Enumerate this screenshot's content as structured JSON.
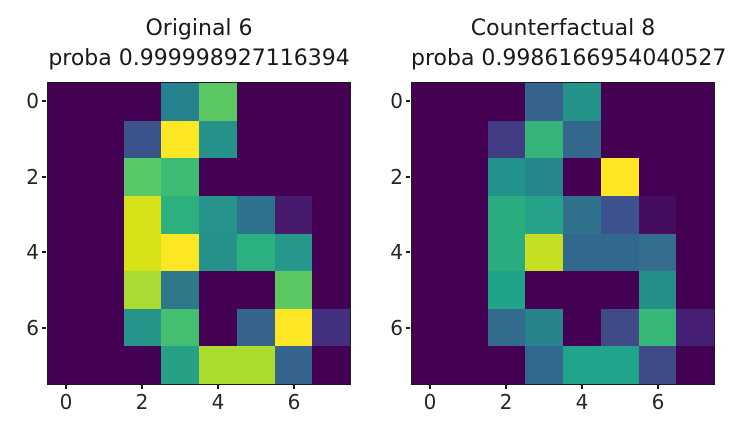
{
  "figure": {
    "background": "#ffffff",
    "text_color": "#1a1a1a",
    "tick_color": "#262626",
    "spine_color": "#1c1c1c"
  },
  "chart_data": [
    {
      "type": "heatmap",
      "panel": "left",
      "title_line1": "Original 6",
      "title_line2": "proba 0.999998927116394",
      "predicted_class": "6",
      "probability": "0.999998927116394",
      "colormap": "viridis",
      "value_range": [
        0,
        16
      ],
      "grid_size": 8,
      "xticks": [
        "0",
        "2",
        "4",
        "6"
      ],
      "yticks": [
        "0",
        "2",
        "4",
        "6"
      ],
      "values_est": [
        [
          0,
          0,
          0,
          7,
          12,
          0,
          0,
          0
        ],
        [
          0,
          0,
          4,
          16,
          8,
          0,
          0,
          0
        ],
        [
          0,
          0,
          12,
          11,
          0,
          0,
          0,
          0
        ],
        [
          0,
          0,
          15,
          10,
          8,
          6,
          1,
          0
        ],
        [
          0,
          0,
          15,
          16,
          8,
          10,
          9,
          0
        ],
        [
          0,
          0,
          14,
          6,
          0,
          0,
          12,
          0
        ],
        [
          0,
          0,
          8,
          11,
          0,
          5,
          16,
          2
        ],
        [
          0,
          0,
          0,
          9,
          14,
          14,
          5,
          0
        ]
      ],
      "cell_colors": [
        [
          "#440154",
          "#440154",
          "#440154",
          "#26828e",
          "#5cc863",
          "#440154",
          "#440154",
          "#440154"
        ],
        [
          "#440154",
          "#440154",
          "#3a548b",
          "#fde725",
          "#249289",
          "#440154",
          "#440154",
          "#440154"
        ],
        [
          "#440154",
          "#440154",
          "#58c968",
          "#3dbc74",
          "#440154",
          "#440154",
          "#440154",
          "#440154"
        ],
        [
          "#440154",
          "#440154",
          "#d8e219",
          "#2bb07e",
          "#26948b",
          "#2e718e",
          "#461b6e",
          "#440154"
        ],
        [
          "#440154",
          "#440154",
          "#d8e219",
          "#fde725",
          "#259189",
          "#2bb17d",
          "#26988b",
          "#440154"
        ],
        [
          "#440154",
          "#440154",
          "#abdb32",
          "#2e788c",
          "#440154",
          "#440154",
          "#5cc863",
          "#440154"
        ],
        [
          "#440154",
          "#440154",
          "#26958c",
          "#44bf70",
          "#440154",
          "#36648c",
          "#fde725",
          "#433081"
        ],
        [
          "#440154",
          "#440154",
          "#440154",
          "#26a185",
          "#addc30",
          "#addc30",
          "#36648c",
          "#440154"
        ]
      ]
    },
    {
      "type": "heatmap",
      "panel": "right",
      "title_line1": "Counterfactual 8",
      "title_line2": "proba 0.9986166954040527",
      "predicted_class": "8",
      "probability": "0.9986166954040527",
      "colormap": "viridis",
      "value_range": [
        0,
        16
      ],
      "grid_size": 8,
      "xticks": [
        "0",
        "2",
        "4",
        "6"
      ],
      "yticks": [
        "0",
        "2",
        "4",
        "6"
      ],
      "values_est": [
        [
          0,
          0,
          0,
          5,
          8,
          0,
          0,
          0
        ],
        [
          0,
          0,
          2.5,
          10.4,
          5.3,
          0,
          0,
          0
        ],
        [
          0,
          0,
          8,
          7,
          0,
          16,
          0,
          0
        ],
        [
          0,
          0,
          10,
          9,
          6,
          4.3,
          0.7,
          0
        ],
        [
          0,
          0,
          10,
          14.6,
          5.4,
          5.4,
          5.7,
          0
        ],
        [
          0,
          0,
          9,
          0,
          0,
          0,
          8,
          0
        ],
        [
          0,
          0,
          5.2,
          7,
          0,
          3.6,
          10.6,
          1.9
        ],
        [
          0,
          0,
          0,
          5,
          9,
          9,
          3.6,
          0
        ]
      ],
      "cell_colors": [
        [
          "#440154",
          "#440154",
          "#440154",
          "#36648c",
          "#24948a",
          "#440154",
          "#440154",
          "#440154"
        ],
        [
          "#440154",
          "#440154",
          "#423c85",
          "#34b478",
          "#33688c",
          "#440154",
          "#440154",
          "#440154"
        ],
        [
          "#440154",
          "#440154",
          "#21928c",
          "#26868d",
          "#440154",
          "#fde725",
          "#440154",
          "#440154"
        ],
        [
          "#440154",
          "#440154",
          "#2bac7e",
          "#26a18a",
          "#30718d",
          "#3d538f",
          "#460c60",
          "#440154"
        ],
        [
          "#440154",
          "#440154",
          "#2bac7e",
          "#c6df22",
          "#32688e",
          "#32688e",
          "#356d8e",
          "#440154"
        ],
        [
          "#440154",
          "#440154",
          "#1fa389",
          "#440154",
          "#440154",
          "#440154",
          "#249189",
          "#440154"
        ],
        [
          "#440154",
          "#440154",
          "#326b8c",
          "#28838d",
          "#440154",
          "#3f4a87",
          "#36b878",
          "#451f75"
        ],
        [
          "#440154",
          "#440154",
          "#440154",
          "#31688e",
          "#21a48b",
          "#21a48b",
          "#3f4a87",
          "#440154"
        ]
      ]
    }
  ]
}
